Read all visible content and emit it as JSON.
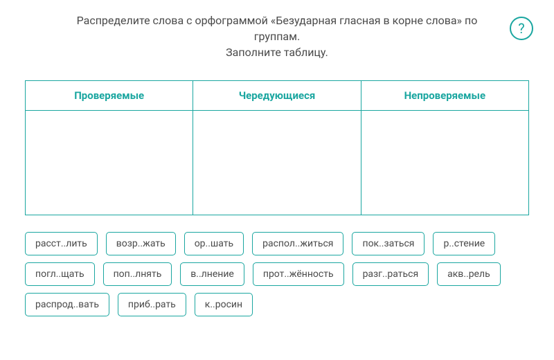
{
  "instruction_line1": "Распределите слова с орфограммой «Безударная гласная в корне слова» по группам.",
  "instruction_line2": "Заполните таблицу.",
  "help_label": "?",
  "columns": [
    {
      "header": "Проверяемые"
    },
    {
      "header": "Чередующиеся"
    },
    {
      "header": "Непроверяемые"
    }
  ],
  "words": [
    "расст..лить",
    "возр..жать",
    "ор..шать",
    "распол..житься",
    "пок..заться",
    "р..стение",
    "погл..щать",
    "поп..лнять",
    "в..лнение",
    "прот..жённость",
    "разг..раться",
    "акв..рель",
    "распрод..вать",
    "приб..рать",
    "к..росин"
  ],
  "colors": {
    "accent": "#1aa6a0",
    "text": "#4a4a4a",
    "background": "#ffffff"
  }
}
